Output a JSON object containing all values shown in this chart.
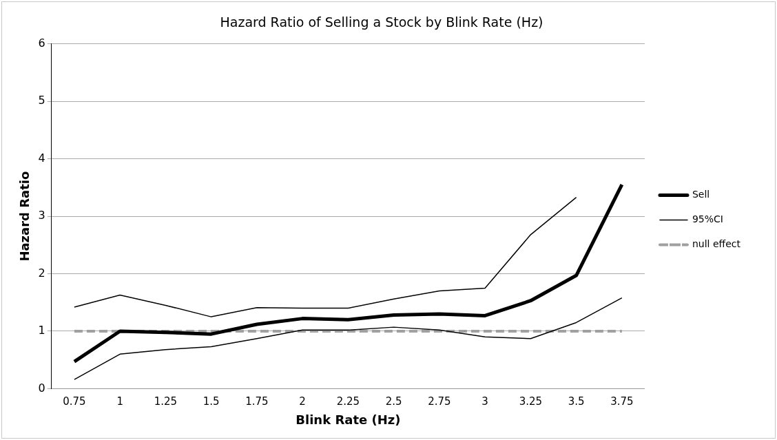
{
  "chart_data": {
    "type": "line",
    "title": "Hazard Ratio of Selling a Stock by Blink Rate (Hz)",
    "xlabel": "Blink Rate (Hz)",
    "ylabel": "Hazard Ratio",
    "categories": [
      "0.75",
      "1",
      "1.25",
      "1.5",
      "1.75",
      "2",
      "2.25",
      "2.5",
      "2.75",
      "3",
      "3.25",
      "3.5",
      "3.75"
    ],
    "series": [
      {
        "name": "Sell",
        "color": "#000000",
        "values": [
          0.47,
          1.0,
          0.98,
          0.95,
          1.12,
          1.22,
          1.2,
          1.28,
          1.3,
          1.27,
          1.53,
          1.97,
          3.55
        ]
      },
      {
        "name": "95%CI",
        "color": "#000000",
        "values": [
          1.42,
          1.63,
          1.45,
          1.25,
          1.41,
          1.4,
          1.4,
          1.56,
          1.7,
          1.75,
          2.68,
          3.33,
          null
        ]
      },
      {
        "color": "#000000",
        "values": [
          0.16,
          0.6,
          0.68,
          0.73,
          0.87,
          1.02,
          1.02,
          1.07,
          1.02,
          0.9,
          0.87,
          1.15,
          1.58
        ]
      },
      {
        "name": "null effect",
        "color": "#a0a0a0",
        "line_style": "dashed",
        "values": [
          1,
          1,
          1,
          1,
          1,
          1,
          1,
          1,
          1,
          1,
          1,
          1,
          1
        ]
      }
    ],
    "ylim": [
      0,
      6
    ],
    "yticks": [
      0,
      1,
      2,
      3,
      4,
      5,
      6
    ],
    "grid": "y",
    "legend": "right",
    "marker": "none"
  }
}
